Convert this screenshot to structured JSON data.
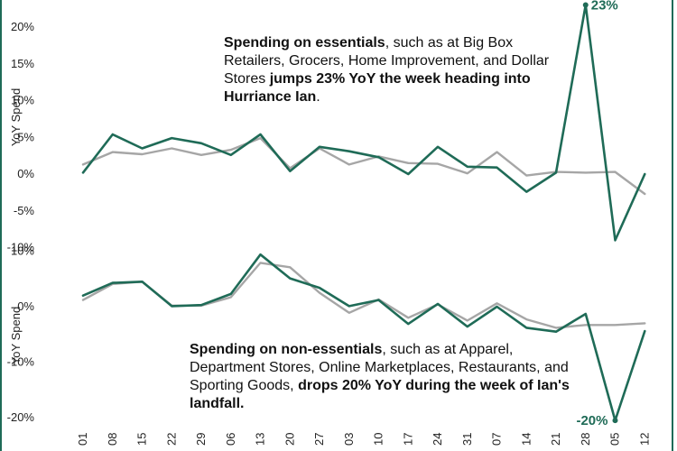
{
  "chart_data": [
    {
      "type": "line",
      "ylabel": "YoY Spend",
      "yticks": [
        "20%",
        "15%",
        "10%",
        "5%",
        "0%",
        "-5%",
        "-10%"
      ],
      "ylim": [
        -10,
        23
      ],
      "series": [
        {
          "color": "#1f6b57",
          "values": [
            0.2,
            5.4,
            3.5,
            4.9,
            4.2,
            2.6,
            5.4,
            0.4,
            3.7,
            3.1,
            2.3,
            0.0,
            3.7,
            1.0,
            0.9,
            -2.4,
            0.2,
            23.0,
            -9.0,
            0.0
          ]
        },
        {
          "color": "#a6a6a6",
          "values": [
            1.3,
            3.0,
            2.7,
            3.5,
            2.6,
            3.3,
            4.9,
            0.8,
            3.5,
            1.3,
            2.4,
            1.5,
            1.4,
            0.1,
            3.0,
            -0.2,
            0.3,
            0.2,
            0.3,
            -2.7
          ]
        }
      ],
      "annotation": {
        "text": "23%"
      },
      "callout": {
        "p1": "Spending on essentials",
        "p2": ", such as at Big Box Retailers, Grocers, Home Improvement, and Dollar Stores ",
        "p3": "jumps 23% YoY the week heading into Hurriance Ian",
        "p4": "."
      }
    },
    {
      "type": "line",
      "ylabel": "YoY Spend",
      "yticks": [
        "10%",
        "0%",
        "-10%",
        "-20%"
      ],
      "ylim": [
        -20,
        10
      ],
      "series": [
        {
          "color": "#1f6b57",
          "values": [
            2.0,
            4.3,
            4.5,
            0.1,
            0.3,
            2.3,
            9.4,
            5.1,
            3.4,
            0.1,
            1.2,
            -3.1,
            0.5,
            -3.6,
            0.0,
            -3.8,
            -4.5,
            -1.3,
            -20.5,
            -4.4
          ]
        },
        {
          "color": "#a6a6a6",
          "values": [
            1.2,
            4.1,
            4.5,
            0.2,
            0.2,
            1.7,
            7.9,
            7.1,
            2.5,
            -1.1,
            1.3,
            -2.0,
            0.4,
            -2.5,
            0.6,
            -2.3,
            -3.8,
            -3.3,
            -3.3,
            -3.0
          ]
        }
      ],
      "annotation": {
        "text": "-20%"
      },
      "callout": {
        "p1": "Spending on non-essentials",
        "p2": ", such as at Apparel, Department Stores, Online Marketplaces, Restaurants, and Sporting Goods, ",
        "p3": "drops 20% YoY during the week of Ian's landfall.",
        "p4": ""
      }
    }
  ],
  "xticks": [
    "01",
    "08",
    "15",
    "22",
    "29",
    "06",
    "13",
    "20",
    "27",
    "03",
    "10",
    "17",
    "24",
    "31",
    "07",
    "14",
    "21",
    "28",
    "05",
    "12"
  ]
}
